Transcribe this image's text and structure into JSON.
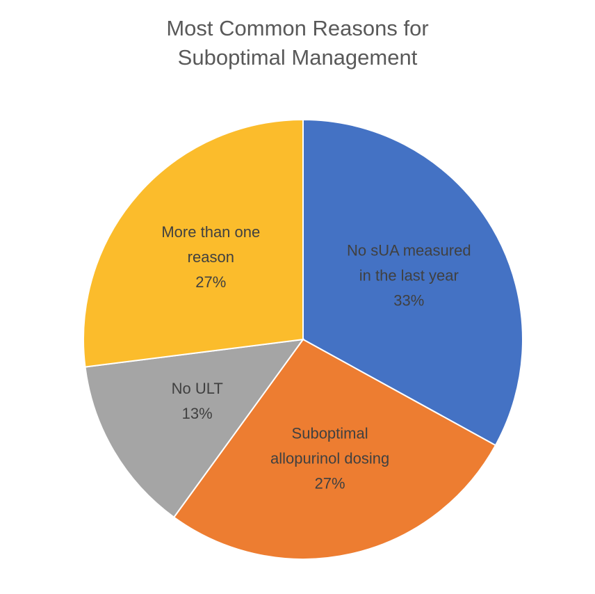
{
  "chart_data": {
    "type": "pie",
    "title_lines": [
      "Most Common Reasons for",
      "Suboptimal Management"
    ],
    "slices": [
      {
        "label_lines": [
          "No sUA measured",
          "in the last year"
        ],
        "value": 33,
        "value_label": "33%",
        "color": "#4472C4"
      },
      {
        "label_lines": [
          "Suboptimal",
          "allopurinol dosing"
        ],
        "value": 27,
        "value_label": "27%",
        "color": "#ED7D31"
      },
      {
        "label_lines": [
          "No ULT"
        ],
        "value": 13,
        "value_label": "13%",
        "color": "#A5A5A5"
      },
      {
        "label_lines": [
          "More than one",
          "reason"
        ],
        "value": 27,
        "value_label": "27%",
        "color": "#FBBC2C"
      }
    ],
    "start_angle_deg": 0,
    "direction": "clockwise",
    "legend": "none"
  }
}
